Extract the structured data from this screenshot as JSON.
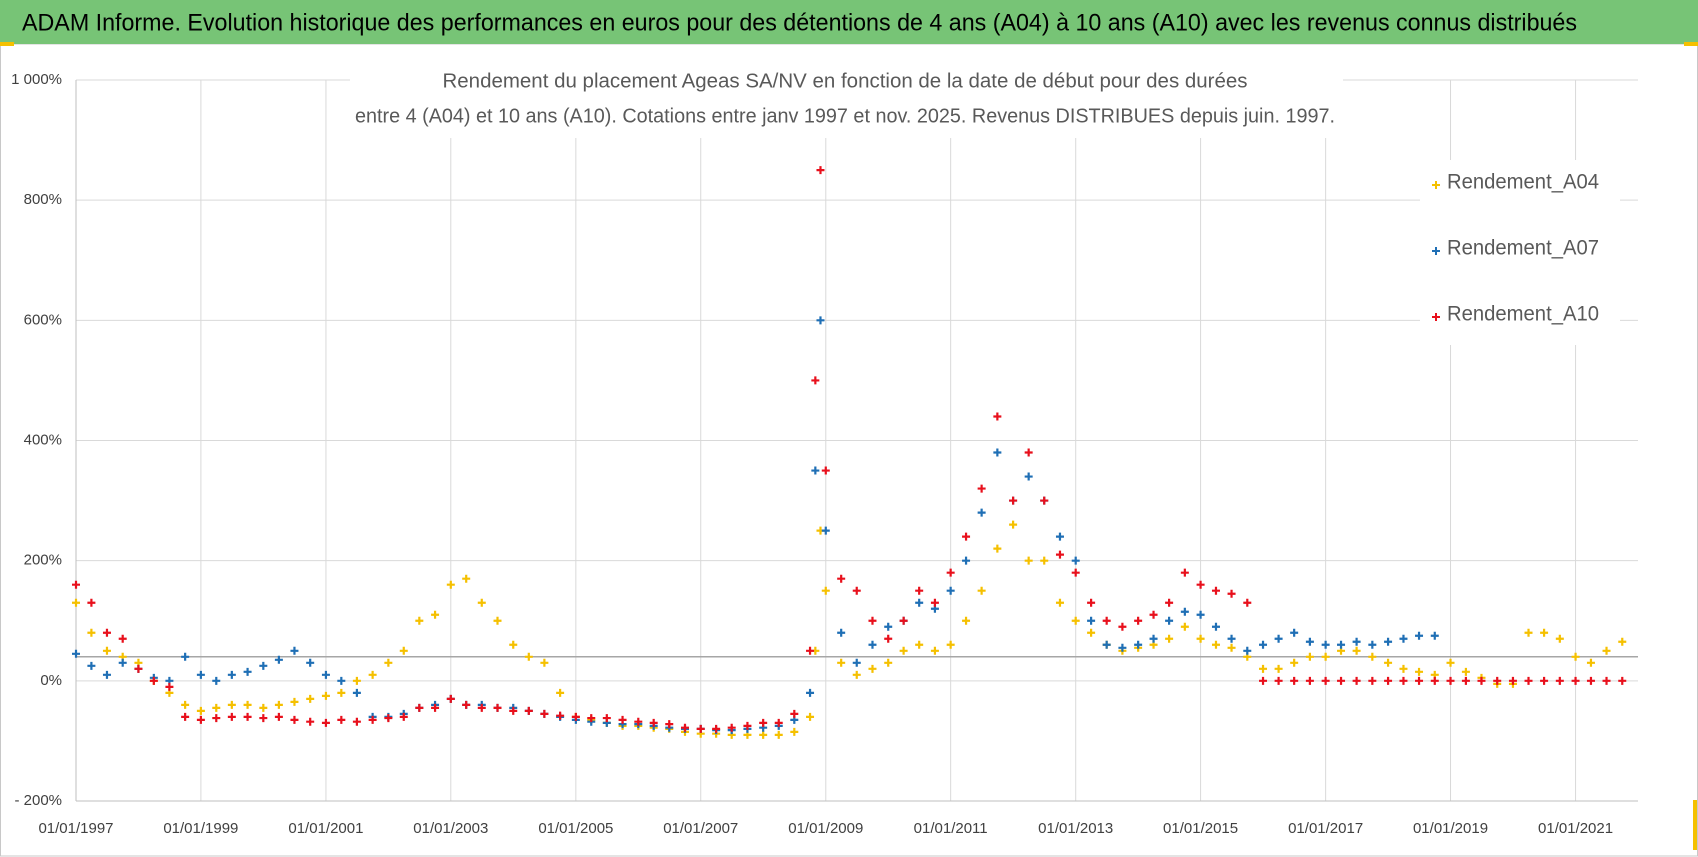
{
  "chart_data": {
    "type": "scatter",
    "title": "ADAM Informe. Evolution historique des performances en euros pour des détentions de 4 ans (A04) à 10 ans (A10) avec les revenus connus distribués",
    "subtitle": [
      "Rendement du placement Ageas SA/NV en fonction de la date de début pour des durées",
      "entre 4 (A04) et 10 ans (A10).  Cotations entre janv 1997 et nov. 2025. Revenus DISTRIBUES depuis juin. 1997."
    ],
    "x": [
      "01/01/1997",
      "01/04/1997",
      "01/07/1997",
      "01/10/1997",
      "01/01/1998",
      "01/04/1998",
      "01/07/1998",
      "01/10/1998",
      "01/01/1999",
      "01/04/1999",
      "01/07/1999",
      "01/10/1999",
      "01/01/2000",
      "01/04/2000",
      "01/07/2000",
      "01/10/2000",
      "01/01/2001",
      "01/04/2001",
      "01/07/2001",
      "01/10/2001",
      "01/01/2002",
      "01/04/2002",
      "01/07/2002",
      "01/10/2002",
      "01/01/2003",
      "01/04/2003",
      "01/07/2003",
      "01/10/2003",
      "01/01/2004",
      "01/04/2004",
      "01/07/2004",
      "01/10/2004",
      "01/01/2005",
      "01/04/2005",
      "01/07/2005",
      "01/10/2005",
      "01/01/2006",
      "01/04/2006",
      "01/07/2006",
      "01/10/2006",
      "01/01/2007",
      "01/04/2007",
      "01/07/2007",
      "01/10/2007",
      "01/01/2008",
      "01/04/2008",
      "01/07/2008",
      "01/10/2008",
      "01/11/2008",
      "01/12/2008",
      "01/01/2009",
      "01/04/2009",
      "01/07/2009",
      "01/10/2009",
      "01/01/2010",
      "01/04/2010",
      "01/07/2010",
      "01/10/2010",
      "01/01/2011",
      "01/04/2011",
      "01/07/2011",
      "01/10/2011",
      "01/01/2012",
      "01/04/2012",
      "01/07/2012",
      "01/10/2012",
      "01/01/2013",
      "01/04/2013",
      "01/07/2013",
      "01/10/2013",
      "01/01/2014",
      "01/04/2014",
      "01/07/2014",
      "01/10/2014",
      "01/01/2015",
      "01/04/2015",
      "01/07/2015",
      "01/10/2015",
      "01/01/2016",
      "01/04/2016",
      "01/07/2016",
      "01/10/2016",
      "01/01/2017",
      "01/04/2017",
      "01/07/2017",
      "01/10/2017",
      "01/01/2018",
      "01/04/2018",
      "01/07/2018",
      "01/10/2018",
      "01/01/2019",
      "01/04/2019",
      "01/07/2019",
      "01/10/2019",
      "01/01/2020",
      "01/04/2020",
      "01/07/2020",
      "01/10/2020",
      "01/01/2021",
      "01/04/2021",
      "01/07/2021",
      "01/10/2021"
    ],
    "series": [
      {
        "name": "Rendement_A04",
        "color": "#f5c000",
        "values": [
          130,
          80,
          50,
          40,
          30,
          0,
          -20,
          -40,
          -50,
          -45,
          -40,
          -40,
          -45,
          -40,
          -35,
          -30,
          -25,
          -20,
          0,
          10,
          30,
          50,
          100,
          110,
          160,
          170,
          130,
          100,
          60,
          40,
          30,
          -20,
          -60,
          -65,
          -70,
          -75,
          -75,
          -78,
          -80,
          -85,
          -88,
          -88,
          -90,
          -90,
          -90,
          -90,
          -85,
          -60,
          50,
          250,
          150,
          30,
          10,
          20,
          30,
          50,
          60,
          50,
          60,
          100,
          150,
          220,
          260,
          200,
          200,
          130,
          100,
          80,
          60,
          50,
          55,
          60,
          70,
          90,
          70,
          60,
          55,
          40,
          20,
          20,
          30,
          40,
          40,
          50,
          50,
          40,
          30,
          20,
          15,
          10,
          30,
          15,
          5,
          -5,
          -5,
          80,
          80,
          70,
          40,
          30,
          50,
          65
        ]
      },
      {
        "name": "Rendement_A07",
        "color": "#1f6fb5",
        "values": [
          45,
          25,
          10,
          30,
          20,
          5,
          0,
          40,
          10,
          0,
          10,
          15,
          25,
          35,
          50,
          30,
          10,
          0,
          -20,
          -60,
          -60,
          -55,
          -45,
          -40,
          -30,
          -40,
          -40,
          -45,
          -45,
          -50,
          -55,
          -60,
          -65,
          -68,
          -70,
          -72,
          -72,
          -75,
          -78,
          -80,
          -80,
          -82,
          -82,
          -80,
          -78,
          -75,
          -65,
          -20,
          350,
          600,
          250,
          80,
          30,
          60,
          90,
          100,
          130,
          120,
          150,
          200,
          280,
          380,
          300,
          340,
          300,
          240,
          200,
          100,
          60,
          55,
          60,
          70,
          100,
          115,
          110,
          90,
          70,
          50,
          60,
          70,
          80,
          65,
          60,
          60,
          65,
          60,
          65,
          70,
          75,
          75,
          null,
          null,
          null,
          null,
          null,
          null,
          null,
          null,
          null,
          null,
          null,
          null
        ]
      },
      {
        "name": "Rendement_A10",
        "color": "#e8101c",
        "values": [
          160,
          130,
          80,
          70,
          20,
          0,
          -10,
          -60,
          -65,
          -62,
          -60,
          -60,
          -62,
          -60,
          -65,
          -68,
          -70,
          -65,
          -68,
          -65,
          -62,
          -60,
          -45,
          -45,
          -30,
          -40,
          -45,
          -45,
          -50,
          -50,
          -55,
          -58,
          -60,
          -62,
          -62,
          -65,
          -68,
          -70,
          -72,
          -78,
          -80,
          -80,
          -78,
          -75,
          -70,
          -70,
          -55,
          50,
          500,
          850,
          350,
          170,
          150,
          100,
          70,
          100,
          150,
          130,
          180,
          240,
          320,
          440,
          300,
          380,
          300,
          210,
          180,
          130,
          100,
          90,
          100,
          110,
          130,
          180,
          160,
          150,
          145,
          130,
          0,
          0,
          0,
          0,
          0,
          0,
          0,
          0,
          0,
          0,
          0,
          0,
          0,
          0,
          0,
          0,
          0,
          0,
          0,
          0,
          0,
          0,
          0,
          0
        ]
      }
    ],
    "xlim": [
      "01/01/1997",
      "01/01/2022"
    ],
    "xticks": [
      "01/01/1997",
      "01/01/1999",
      "01/01/2001",
      "01/01/2003",
      "01/01/2005",
      "01/01/2007",
      "01/01/2009",
      "01/01/2011",
      "01/01/2013",
      "01/01/2015",
      "01/01/2017",
      "01/01/2019",
      "01/01/2021"
    ],
    "ylim": [
      -200,
      1000
    ],
    "yticks": [
      {
        "value": -200,
        "label": "- 200%"
      },
      {
        "value": 0,
        "label": "0%"
      },
      {
        "value": 200,
        "label": "200%"
      },
      {
        "value": 400,
        "label": "400%"
      },
      {
        "value": 600,
        "label": "600%"
      },
      {
        "value": 800,
        "label": "800%"
      },
      {
        "value": 1000,
        "label": "1 000%"
      }
    ],
    "reference_line": 40,
    "grid": true,
    "legend": "upper right"
  }
}
